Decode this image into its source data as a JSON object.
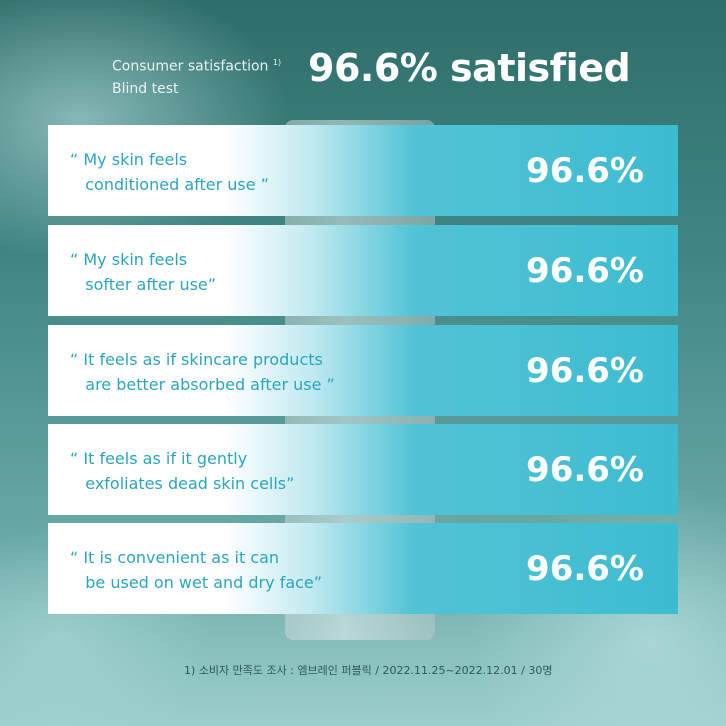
{
  "header": {
    "label_line1": "Consumer satisfaction",
    "footnote_mark": "1)",
    "label_line2": "Blind test",
    "headline": "96.6% satisfied"
  },
  "items": [
    {
      "quote": "“ My skin feels\n   conditioned after use ”",
      "value": "96.6%"
    },
    {
      "quote": "“ My skin feels\n   softer after use”",
      "value": "96.6%"
    },
    {
      "quote": "“ It feels as if skincare products\n   are better absorbed after use ”",
      "value": "96.6%"
    },
    {
      "quote": "“ It feels as if it gently\n   exfoliates dead skin cells”",
      "value": "96.6%"
    },
    {
      "quote": "“ It is convenient as it can\n   be used on wet and dry face”",
      "value": "96.6%"
    }
  ],
  "footnote": "1) 소비자 만족도 조사 : 엠브레인 퍼블릭 / 2022.11.25~2022.12.01 / 30명",
  "colors": {
    "quote_text": "#2aa5bf",
    "card_accent": "#3cbcd0"
  }
}
